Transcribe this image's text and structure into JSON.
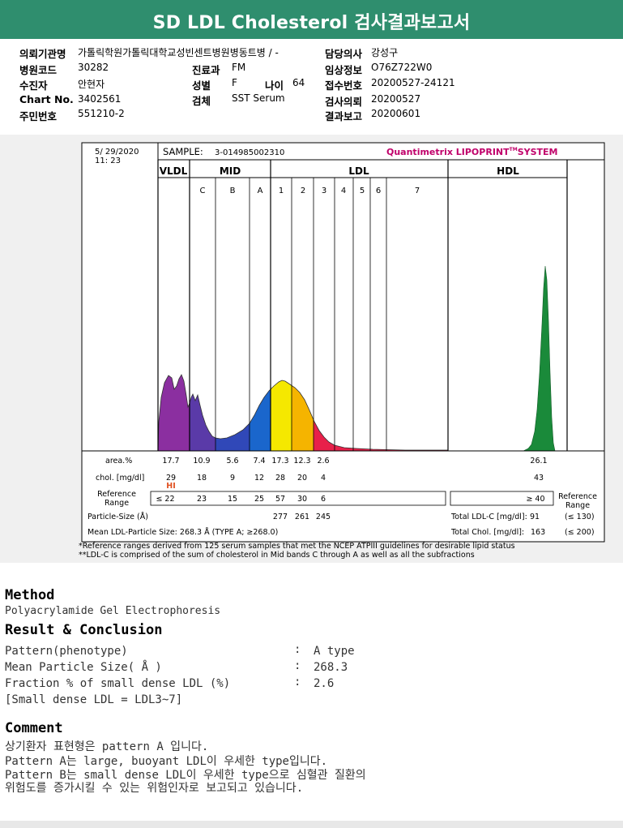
{
  "header": {
    "title": "SD LDL Cholesterol 검사결과보고서"
  },
  "info": {
    "left": [
      {
        "label": "의뢰기관명",
        "value": "가톨릭학원가톨릭대학교성빈센트병원"
      },
      {
        "label": "병원코드",
        "value": "30282"
      },
      {
        "label": "수진자",
        "value": "안현자"
      },
      {
        "label": "Chart No.",
        "value": "3402561"
      },
      {
        "label": "주민번호",
        "value": "551210-2"
      }
    ],
    "mid": [
      {
        "label": "진료과",
        "value": "FM"
      },
      {
        "label": "성별",
        "value": "F"
      },
      {
        "label": "검체",
        "value": "SST Serum"
      }
    ],
    "age": {
      "label": "나이",
      "value": "64"
    },
    "ward_suffix": "병동트병 / -",
    "right": [
      {
        "label": "담당의사",
        "value": "강성구"
      },
      {
        "label": "임상정보",
        "value": "O76Z722W0"
      },
      {
        "label": "접수번호",
        "value": "20200527-24121"
      },
      {
        "label": "검사의뢰",
        "value": "20200527"
      },
      {
        "label": "결과보고",
        "value": "20200601"
      }
    ]
  },
  "report": {
    "date": "5/ 29/2020",
    "time": "11: 23",
    "sample_label": "SAMPLE:",
    "sample_id": "3-014985002310",
    "brand": "Quantimetrix LIPOPRINT",
    "brand_tm": "TM",
    "brand_suffix": "SYSTEM",
    "groups": {
      "vldl": "VLDL",
      "mid": "MID",
      "ldl": "LDL",
      "hdl": "HDL"
    },
    "bands": [
      "C",
      "B",
      "A",
      "1",
      "2",
      "3",
      "4",
      "5",
      "6",
      "7"
    ],
    "area_label": "area.%",
    "area": {
      "vldl": "17.7",
      "c": "10.9",
      "b": "5.6",
      "a": "7.4",
      "l1": "17.3",
      "l2": "12.3",
      "l3": "2.6",
      "hdl": "26.1"
    },
    "chol_label": "chol. [mg/dl]",
    "chol": {
      "vldl": "29",
      "c": "18",
      "b": "9",
      "a": "12",
      "l1": "28",
      "l2": "20",
      "l3": "4",
      "hdl": "43"
    },
    "hi_flag": "HI",
    "ref_label": "Reference Range",
    "ref": {
      "vldl": "≤ 22",
      "c": "23",
      "b": "15",
      "a": "25",
      "l1": "57",
      "l2": "30",
      "l3": "6",
      "hdl": "≥ 40"
    },
    "ref_label_right": "Reference Range",
    "particle_label": "Particle-Size (Å)",
    "particle": {
      "l1": "277",
      "l2": "261",
      "l3": "245"
    },
    "mean_size_text": "Mean LDL-Particle Size:   268.3 Å   (TYPE A; ≥268.0)",
    "total_ldl_label": "Total LDL-C [mg/dl]:",
    "total_ldl": "91",
    "total_ldl_ref": "(≤ 130)",
    "total_chol_label": "Total Chol. [mg/dl]:",
    "total_chol": "163",
    "total_chol_ref": "(≤ 200)",
    "colors": {
      "vldl": "#8b2fa0",
      "c": "#5a3aa8",
      "b": "#3048b8",
      "a": "#1a66cc",
      "l1": "#f5e800",
      "l2": "#f5b400",
      "l3": "#e8204a",
      "hdl": "#1a8a3a"
    }
  },
  "footnotes": [
    "*Reference ranges derived from 125 serum samples that met the NCEP ATPIII guidelines for desirable lipid status",
    "**LDL-C is comprised of the sum of cholesterol in Mid bands C through A as well as all the subfractions"
  ],
  "method": {
    "heading": "Method",
    "text": "Polyacrylamide Gel Electrophoresis"
  },
  "result": {
    "heading": "Result & Conclusion",
    "rows": [
      {
        "label": "Pattern(phenotype)",
        "value": "A type"
      },
      {
        "label": "Mean Particle Size( Å )",
        "value": "268.3"
      },
      {
        "label": "Fraction % of small dense LDL (%)",
        "value": "2.6"
      }
    ],
    "note": "[Small dense LDL = LDL3~7]"
  },
  "comment": {
    "heading": "Comment",
    "lines": [
      "상기환자 표현형은 pattern A 입니다.",
      "Pattern A는 large, buoyant LDL이 우세한 type입니다.",
      "Pattern B는 small dense LDL이 우세한 type으로 심혈관 질환의",
      "위험도를 증가시킬 수 있는 위험인자로 보고되고 있습니다."
    ]
  }
}
